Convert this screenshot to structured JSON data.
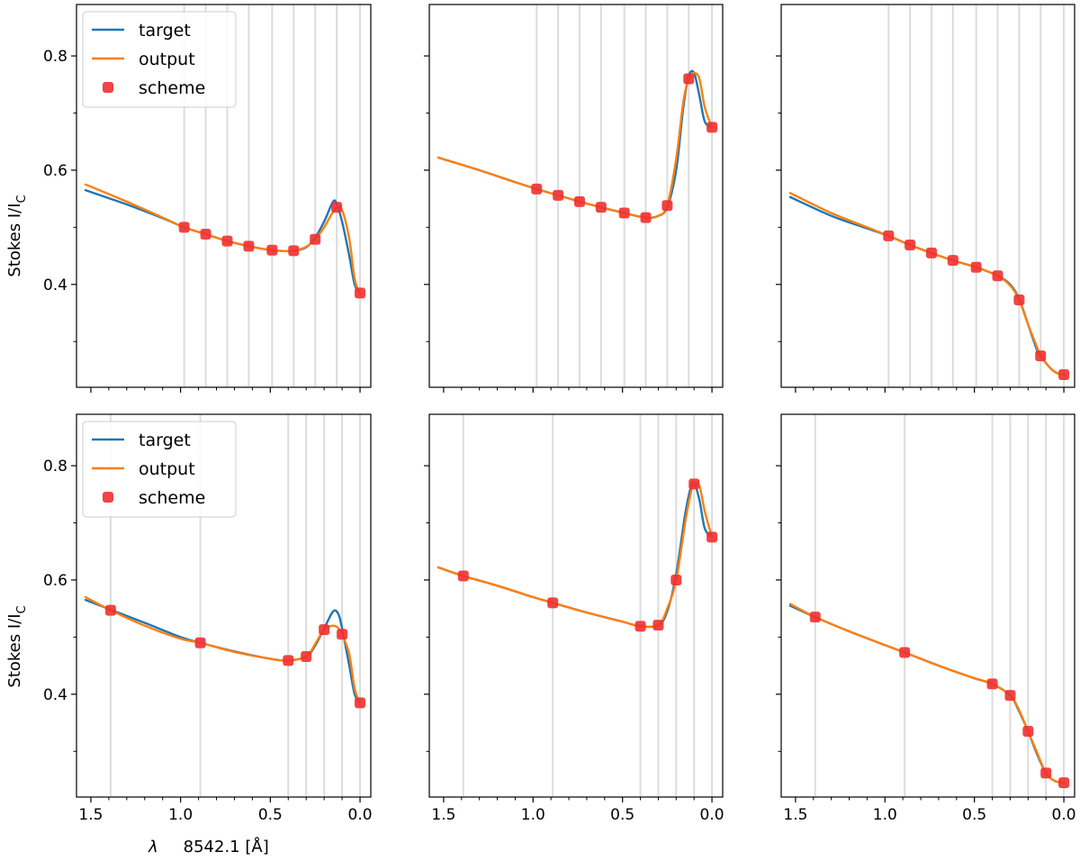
{
  "figure": {
    "ylabel_main": "Stokes I/I",
    "ylabel_sub": "C",
    "xlabel_lambda": "λ",
    "xlabel_rest": "8542.1 [Å]"
  },
  "legend": {
    "target": "target",
    "output": "output",
    "scheme": "scheme"
  },
  "colors": {
    "target": "#1f77b4",
    "output": "#ff7f0e",
    "scheme": "#f03030",
    "grid": "#dcdcdc"
  },
  "chart_data": [
    {
      "type": "line",
      "panel": "row1-col1",
      "xlim": [
        1.58,
        -0.06
      ],
      "ylim": [
        0.22,
        0.89
      ],
      "xticks": [
        1.5,
        1.0,
        0.5,
        0.0
      ],
      "xtick_labels": [
        "1.5",
        "1.0",
        "0.5",
        "0.0"
      ],
      "yticks": [
        0.4,
        0.6,
        0.8
      ],
      "ytick_labels": [
        "0.4",
        "0.6",
        "0.8"
      ],
      "show_xlabels": false,
      "show_ylabels": true,
      "show_legend": true,
      "scheme_x": [
        0.98,
        0.86,
        0.74,
        0.62,
        0.49,
        0.37,
        0.25,
        0.13,
        0.0
      ],
      "scheme_y": [
        0.5,
        0.488,
        0.476,
        0.467,
        0.46,
        0.459,
        0.479,
        0.535,
        0.385
      ],
      "series": [
        {
          "name": "target",
          "x": [
            1.53,
            1.3,
            1.1,
            0.98,
            0.86,
            0.74,
            0.62,
            0.49,
            0.37,
            0.3,
            0.25,
            0.2,
            0.15,
            0.13,
            0.1,
            0.06,
            0.03,
            0.0
          ],
          "y": [
            0.565,
            0.54,
            0.516,
            0.5,
            0.488,
            0.476,
            0.467,
            0.46,
            0.459,
            0.465,
            0.482,
            0.51,
            0.545,
            0.54,
            0.51,
            0.45,
            0.4,
            0.385
          ]
        },
        {
          "name": "output",
          "x": [
            1.53,
            1.3,
            1.1,
            0.98,
            0.86,
            0.74,
            0.62,
            0.49,
            0.37,
            0.3,
            0.25,
            0.2,
            0.16,
            0.13,
            0.1,
            0.06,
            0.03,
            0.0
          ],
          "y": [
            0.575,
            0.545,
            0.517,
            0.5,
            0.488,
            0.476,
            0.467,
            0.46,
            0.459,
            0.466,
            0.479,
            0.5,
            0.522,
            0.535,
            0.53,
            0.48,
            0.41,
            0.385
          ]
        }
      ]
    },
    {
      "type": "line",
      "panel": "row1-col2",
      "xlim": [
        1.58,
        -0.06
      ],
      "ylim": [
        0.22,
        0.89
      ],
      "xticks": [
        1.5,
        1.0,
        0.5,
        0.0
      ],
      "xtick_labels": [
        "1.5",
        "1.0",
        "0.5",
        "0.0"
      ],
      "yticks": [
        0.4,
        0.6,
        0.8
      ],
      "ytick_labels": [
        "0.4",
        "0.6",
        "0.8"
      ],
      "show_xlabels": false,
      "show_ylabels": false,
      "show_legend": false,
      "scheme_x": [
        0.98,
        0.86,
        0.74,
        0.62,
        0.49,
        0.37,
        0.25,
        0.13,
        0.0
      ],
      "scheme_y": [
        0.567,
        0.556,
        0.545,
        0.535,
        0.525,
        0.517,
        0.538,
        0.76,
        0.675
      ],
      "series": [
        {
          "name": "target",
          "x": [
            1.53,
            1.3,
            1.1,
            0.98,
            0.86,
            0.74,
            0.62,
            0.49,
            0.37,
            0.3,
            0.25,
            0.2,
            0.16,
            0.13,
            0.1,
            0.07,
            0.04,
            0.0
          ],
          "y": [
            0.622,
            0.6,
            0.579,
            0.567,
            0.556,
            0.545,
            0.535,
            0.525,
            0.517,
            0.52,
            0.535,
            0.6,
            0.71,
            0.765,
            0.77,
            0.73,
            0.685,
            0.675
          ]
        },
        {
          "name": "output",
          "x": [
            1.53,
            1.3,
            1.1,
            0.98,
            0.86,
            0.74,
            0.62,
            0.49,
            0.37,
            0.3,
            0.25,
            0.2,
            0.16,
            0.13,
            0.1,
            0.07,
            0.04,
            0.0
          ],
          "y": [
            0.622,
            0.6,
            0.579,
            0.567,
            0.556,
            0.545,
            0.535,
            0.525,
            0.517,
            0.52,
            0.538,
            0.62,
            0.72,
            0.76,
            0.77,
            0.76,
            0.71,
            0.675
          ]
        }
      ]
    },
    {
      "type": "line",
      "panel": "row1-col3",
      "xlim": [
        1.58,
        -0.06
      ],
      "ylim": [
        0.22,
        0.89
      ],
      "xticks": [
        1.5,
        1.0,
        0.5,
        0.0
      ],
      "xtick_labels": [
        "1.5",
        "1.0",
        "0.5",
        "0.0"
      ],
      "yticks": [
        0.4,
        0.6,
        0.8
      ],
      "ytick_labels": [
        "0.4",
        "0.6",
        "0.8"
      ],
      "show_xlabels": false,
      "show_ylabels": false,
      "show_legend": false,
      "scheme_x": [
        0.98,
        0.86,
        0.74,
        0.62,
        0.49,
        0.37,
        0.25,
        0.13,
        0.0
      ],
      "scheme_y": [
        0.485,
        0.469,
        0.455,
        0.442,
        0.43,
        0.415,
        0.373,
        0.275,
        0.242
      ],
      "series": [
        {
          "name": "target",
          "x": [
            1.53,
            1.3,
            1.1,
            0.98,
            0.86,
            0.74,
            0.62,
            0.49,
            0.37,
            0.3,
            0.25,
            0.2,
            0.15,
            0.13,
            0.08,
            0.04,
            0.0
          ],
          "y": [
            0.553,
            0.52,
            0.498,
            0.485,
            0.469,
            0.455,
            0.442,
            0.43,
            0.415,
            0.4,
            0.375,
            0.33,
            0.285,
            0.275,
            0.255,
            0.245,
            0.242
          ]
        },
        {
          "name": "output",
          "x": [
            1.53,
            1.3,
            1.1,
            0.98,
            0.86,
            0.74,
            0.62,
            0.49,
            0.37,
            0.3,
            0.25,
            0.2,
            0.15,
            0.13,
            0.08,
            0.04,
            0.0
          ],
          "y": [
            0.56,
            0.525,
            0.5,
            0.485,
            0.469,
            0.455,
            0.442,
            0.43,
            0.415,
            0.398,
            0.373,
            0.33,
            0.29,
            0.275,
            0.255,
            0.245,
            0.242
          ]
        }
      ]
    },
    {
      "type": "line",
      "panel": "row2-col1",
      "xlim": [
        1.58,
        -0.06
      ],
      "ylim": [
        0.22,
        0.89
      ],
      "xticks": [
        1.5,
        1.0,
        0.5,
        0.0
      ],
      "xtick_labels": [
        "1.5",
        "1.0",
        "0.5",
        "0.0"
      ],
      "yticks": [
        0.4,
        0.6,
        0.8
      ],
      "ytick_labels": [
        "0.4",
        "0.6",
        "0.8"
      ],
      "show_xlabels": true,
      "show_ylabels": true,
      "show_legend": true,
      "scheme_x": [
        1.39,
        0.89,
        0.4,
        0.3,
        0.2,
        0.1,
        0.0
      ],
      "scheme_y": [
        0.547,
        0.49,
        0.459,
        0.466,
        0.513,
        0.505,
        0.385
      ],
      "series": [
        {
          "name": "target",
          "x": [
            1.53,
            1.39,
            1.2,
            1.0,
            0.89,
            0.7,
            0.5,
            0.4,
            0.3,
            0.25,
            0.2,
            0.15,
            0.12,
            0.1,
            0.06,
            0.03,
            0.0
          ],
          "y": [
            0.565,
            0.548,
            0.525,
            0.5,
            0.49,
            0.475,
            0.462,
            0.459,
            0.466,
            0.485,
            0.515,
            0.545,
            0.54,
            0.515,
            0.45,
            0.4,
            0.385
          ]
        },
        {
          "name": "output",
          "x": [
            1.53,
            1.39,
            1.2,
            1.0,
            0.89,
            0.7,
            0.5,
            0.4,
            0.3,
            0.25,
            0.2,
            0.15,
            0.12,
            0.1,
            0.06,
            0.03,
            0.0
          ],
          "y": [
            0.57,
            0.547,
            0.52,
            0.497,
            0.49,
            0.474,
            0.462,
            0.459,
            0.466,
            0.488,
            0.513,
            0.52,
            0.515,
            0.505,
            0.47,
            0.41,
            0.385
          ]
        }
      ]
    },
    {
      "type": "line",
      "panel": "row2-col2",
      "xlim": [
        1.58,
        -0.06
      ],
      "ylim": [
        0.22,
        0.89
      ],
      "xticks": [
        1.5,
        1.0,
        0.5,
        0.0
      ],
      "xtick_labels": [
        "1.5",
        "1.0",
        "0.5",
        "0.0"
      ],
      "yticks": [
        0.4,
        0.6,
        0.8
      ],
      "ytick_labels": [
        "0.4",
        "0.6",
        "0.8"
      ],
      "show_xlabels": true,
      "show_ylabels": false,
      "show_legend": false,
      "scheme_x": [
        1.39,
        0.89,
        0.4,
        0.3,
        0.2,
        0.1,
        0.0
      ],
      "scheme_y": [
        0.607,
        0.56,
        0.519,
        0.521,
        0.6,
        0.768,
        0.675
      ],
      "series": [
        {
          "name": "target",
          "x": [
            1.53,
            1.39,
            1.2,
            1.0,
            0.89,
            0.7,
            0.5,
            0.4,
            0.3,
            0.25,
            0.2,
            0.15,
            0.12,
            0.1,
            0.07,
            0.04,
            0.0
          ],
          "y": [
            0.622,
            0.607,
            0.59,
            0.57,
            0.56,
            0.543,
            0.527,
            0.519,
            0.521,
            0.545,
            0.61,
            0.715,
            0.76,
            0.77,
            0.74,
            0.69,
            0.675
          ]
        },
        {
          "name": "output",
          "x": [
            1.53,
            1.39,
            1.2,
            1.0,
            0.89,
            0.7,
            0.5,
            0.4,
            0.3,
            0.25,
            0.2,
            0.15,
            0.12,
            0.1,
            0.07,
            0.04,
            0.0
          ],
          "y": [
            0.622,
            0.607,
            0.59,
            0.57,
            0.56,
            0.543,
            0.527,
            0.519,
            0.521,
            0.55,
            0.6,
            0.7,
            0.75,
            0.768,
            0.765,
            0.72,
            0.675
          ]
        }
      ]
    },
    {
      "type": "line",
      "panel": "row2-col3",
      "xlim": [
        1.58,
        -0.06
      ],
      "ylim": [
        0.22,
        0.89
      ],
      "xticks": [
        1.5,
        1.0,
        0.5,
        0.0
      ],
      "xtick_labels": [
        "1.5",
        "1.0",
        "0.5",
        "0.0"
      ],
      "yticks": [
        0.4,
        0.6,
        0.8
      ],
      "ytick_labels": [
        "0.4",
        "0.6",
        "0.8"
      ],
      "show_xlabels": true,
      "show_ylabels": false,
      "show_legend": false,
      "scheme_x": [
        1.39,
        0.89,
        0.4,
        0.3,
        0.2,
        0.1,
        0.0
      ],
      "scheme_y": [
        0.535,
        0.473,
        0.418,
        0.398,
        0.335,
        0.262,
        0.245
      ],
      "series": [
        {
          "name": "target",
          "x": [
            1.53,
            1.39,
            1.2,
            1.0,
            0.89,
            0.7,
            0.5,
            0.4,
            0.3,
            0.25,
            0.2,
            0.15,
            0.1,
            0.05,
            0.0
          ],
          "y": [
            0.555,
            0.535,
            0.51,
            0.486,
            0.473,
            0.45,
            0.428,
            0.418,
            0.398,
            0.37,
            0.335,
            0.295,
            0.262,
            0.248,
            0.245
          ]
        },
        {
          "name": "output",
          "x": [
            1.53,
            1.39,
            1.2,
            1.0,
            0.89,
            0.7,
            0.5,
            0.4,
            0.3,
            0.25,
            0.2,
            0.15,
            0.1,
            0.05,
            0.0
          ],
          "y": [
            0.558,
            0.535,
            0.51,
            0.486,
            0.473,
            0.45,
            0.428,
            0.418,
            0.398,
            0.372,
            0.335,
            0.298,
            0.262,
            0.248,
            0.245
          ]
        }
      ]
    }
  ]
}
